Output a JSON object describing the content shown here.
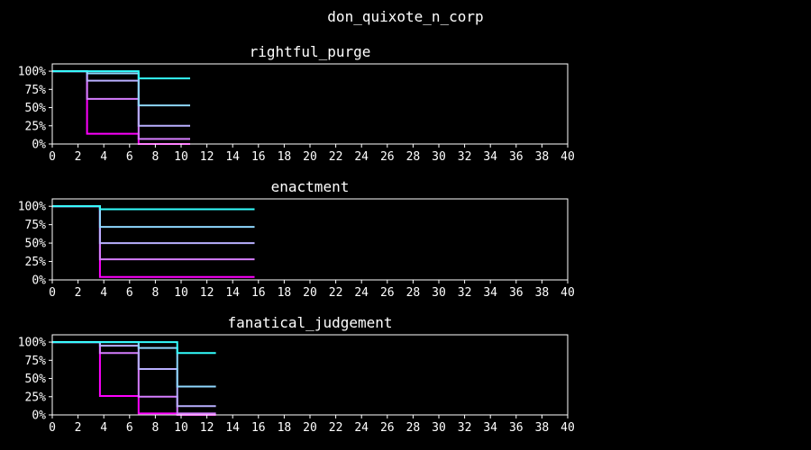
{
  "figure_title": "don_quixote_n_corp",
  "colors": {
    "background": "#000000",
    "axes": "#ffffff",
    "text": "#ffffff",
    "series_palette": [
      "#ff00ff",
      "#e26bff",
      "#c9a8ff",
      "#9fd0ff",
      "#33ffff"
    ]
  },
  "chart_data": [
    {
      "type": "line",
      "step": true,
      "title": "rightful_purge",
      "xlim": [
        0,
        40
      ],
      "ylim": [
        0,
        1.1
      ],
      "x_ticks": [
        0,
        2,
        4,
        6,
        8,
        10,
        12,
        14,
        16,
        18,
        20,
        22,
        24,
        26,
        28,
        30,
        32,
        34,
        36,
        38,
        40
      ],
      "y_ticks": [
        0,
        0.25,
        0.5,
        0.75,
        1.0
      ],
      "y_tick_labels": [
        "0%",
        "25%",
        "50%",
        "75%",
        "100%"
      ],
      "grid": false,
      "legend": false,
      "series": [
        {
          "x": [
            0,
            2.7,
            6.7,
            10.7
          ],
          "y": [
            1.0,
            0.14,
            0.0,
            0.0
          ],
          "color": "#ff00ff"
        },
        {
          "x": [
            0,
            2.7,
            6.7,
            10.7
          ],
          "y": [
            1.0,
            0.62,
            0.07,
            0.07
          ],
          "color": "#d67dff"
        },
        {
          "x": [
            0,
            2.7,
            6.7,
            10.7
          ],
          "y": [
            1.0,
            0.87,
            0.25,
            0.25
          ],
          "color": "#b9b0ff"
        },
        {
          "x": [
            0,
            2.7,
            6.7,
            10.7
          ],
          "y": [
            1.0,
            0.97,
            0.53,
            0.53
          ],
          "color": "#8fd8ff"
        },
        {
          "x": [
            0,
            2.7,
            6.7,
            10.7
          ],
          "y": [
            1.0,
            1.0,
            0.9,
            0.9
          ],
          "color": "#33ffff"
        }
      ]
    },
    {
      "type": "line",
      "step": true,
      "title": "enactment",
      "xlim": [
        0,
        40
      ],
      "ylim": [
        0,
        1.1
      ],
      "x_ticks": [
        0,
        2,
        4,
        6,
        8,
        10,
        12,
        14,
        16,
        18,
        20,
        22,
        24,
        26,
        28,
        30,
        32,
        34,
        36,
        38,
        40
      ],
      "y_ticks": [
        0,
        0.25,
        0.5,
        0.75,
        1.0
      ],
      "y_tick_labels": [
        "0%",
        "25%",
        "50%",
        "75%",
        "100%"
      ],
      "grid": false,
      "legend": false,
      "series": [
        {
          "x": [
            0,
            3.7,
            15.7
          ],
          "y": [
            1.0,
            0.04,
            0.04
          ],
          "color": "#ff00ff"
        },
        {
          "x": [
            0,
            3.7,
            15.7
          ],
          "y": [
            1.0,
            0.28,
            0.28
          ],
          "color": "#d67dff"
        },
        {
          "x": [
            0,
            3.7,
            15.7
          ],
          "y": [
            1.0,
            0.5,
            0.5
          ],
          "color": "#b9b0ff"
        },
        {
          "x": [
            0,
            3.7,
            15.7
          ],
          "y": [
            1.0,
            0.72,
            0.72
          ],
          "color": "#8fd8ff"
        },
        {
          "x": [
            0,
            3.7,
            15.7
          ],
          "y": [
            1.0,
            0.96,
            0.96
          ],
          "color": "#33ffff"
        }
      ]
    },
    {
      "type": "line",
      "step": true,
      "title": "fanatical_judgement",
      "xlim": [
        0,
        40
      ],
      "ylim": [
        0,
        1.1
      ],
      "x_ticks": [
        0,
        2,
        4,
        6,
        8,
        10,
        12,
        14,
        16,
        18,
        20,
        22,
        24,
        26,
        28,
        30,
        32,
        34,
        36,
        38,
        40
      ],
      "y_ticks": [
        0,
        0.25,
        0.5,
        0.75,
        1.0
      ],
      "y_tick_labels": [
        "0%",
        "25%",
        "50%",
        "75%",
        "100%"
      ],
      "grid": false,
      "legend": false,
      "series": [
        {
          "x": [
            0,
            3.7,
            6.7,
            9.7,
            12.7
          ],
          "y": [
            1.0,
            0.26,
            0.02,
            0.0,
            0.0
          ],
          "color": "#ff00ff"
        },
        {
          "x": [
            0,
            3.7,
            6.7,
            9.7,
            12.7
          ],
          "y": [
            1.0,
            0.85,
            0.25,
            0.02,
            0.02
          ],
          "color": "#d67dff"
        },
        {
          "x": [
            0,
            3.7,
            6.7,
            9.7,
            12.7
          ],
          "y": [
            1.0,
            0.95,
            0.63,
            0.12,
            0.12
          ],
          "color": "#b9b0ff"
        },
        {
          "x": [
            0,
            3.7,
            6.7,
            9.7,
            12.7
          ],
          "y": [
            1.0,
            1.0,
            0.92,
            0.39,
            0.39
          ],
          "color": "#8fd8ff"
        },
        {
          "x": [
            0,
            3.7,
            6.7,
            9.7,
            12.7
          ],
          "y": [
            1.0,
            1.0,
            1.0,
            0.85,
            0.85
          ],
          "color": "#33ffff"
        }
      ]
    }
  ]
}
